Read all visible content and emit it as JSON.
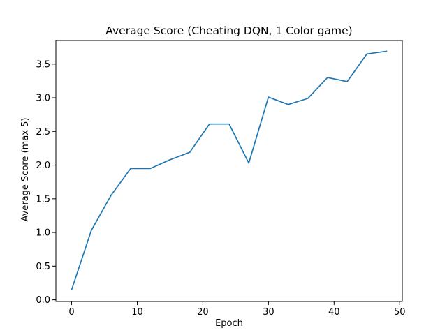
{
  "chart_data": {
    "type": "line",
    "title": "Average Score (Cheating DQN, 1 Color game)",
    "xlabel": "Epoch",
    "ylabel": "Average Score (max 5)",
    "xlim": [
      -2.4,
      50.4
    ],
    "ylim": [
      -0.025,
      3.85
    ],
    "xticks": [
      0,
      10,
      20,
      30,
      40,
      50
    ],
    "yticks": [
      0.0,
      0.5,
      1.0,
      1.5,
      2.0,
      2.5,
      3.0,
      3.5
    ],
    "xtick_labels": [
      "0",
      "10",
      "20",
      "30",
      "40",
      "50"
    ],
    "ytick_labels": [
      "0.0",
      "0.5",
      "1.0",
      "1.5",
      "2.0",
      "2.5",
      "3.0",
      "3.5"
    ],
    "grid": false,
    "series": [
      {
        "color": "#1f77b4",
        "x": [
          0,
          3,
          6,
          9,
          12,
          15,
          18,
          21,
          24,
          27,
          30,
          33,
          36,
          39,
          42,
          45,
          48
        ],
        "y": [
          0.15,
          1.03,
          1.55,
          1.95,
          1.95,
          2.08,
          2.19,
          2.61,
          2.61,
          2.03,
          3.01,
          2.9,
          2.99,
          3.3,
          3.24,
          3.65,
          3.69
        ]
      }
    ]
  }
}
